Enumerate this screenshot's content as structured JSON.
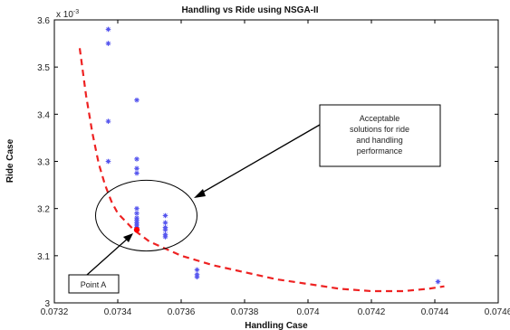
{
  "chart_data": {
    "type": "scatter",
    "title": "Handling vs Ride using NSGA-II",
    "xlabel": "Handling Case",
    "ylabel": "Ride Case",
    "y_exponent_label": "x 10",
    "y_exponent_power": "-3",
    "xlim": [
      0.0732,
      0.0746
    ],
    "ylim": [
      3.0,
      3.6
    ],
    "x_ticks": [
      0.0732,
      0.0734,
      0.0736,
      0.0738,
      0.074,
      0.0742,
      0.0744,
      0.0746
    ],
    "x_tick_labels": [
      "0.0732",
      "0.0734",
      "0.0736",
      "0.0738",
      "0.074",
      "0.0742",
      "0.0744",
      "0.0746"
    ],
    "y_ticks": [
      3.0,
      3.1,
      3.2,
      3.3,
      3.4,
      3.5,
      3.6
    ],
    "y_tick_labels": [
      "3",
      "3.1",
      "3.2",
      "3.3",
      "3.4",
      "3.5",
      "3.6"
    ],
    "grid": false,
    "series": [
      {
        "marker": "asterisk",
        "color": "#5555ee",
        "points": [
          [
            0.07337,
            3.58
          ],
          [
            0.07337,
            3.55
          ],
          [
            0.07337,
            3.385
          ],
          [
            0.07337,
            3.3
          ],
          [
            0.07346,
            3.43
          ],
          [
            0.07346,
            3.305
          ],
          [
            0.07346,
            3.285
          ],
          [
            0.07346,
            3.275
          ],
          [
            0.07346,
            3.2
          ],
          [
            0.07346,
            3.19
          ],
          [
            0.07346,
            3.18
          ],
          [
            0.07346,
            3.175
          ],
          [
            0.07346,
            3.17
          ],
          [
            0.07346,
            3.165
          ],
          [
            0.07346,
            3.16
          ],
          [
            0.07355,
            3.185
          ],
          [
            0.07355,
            3.17
          ],
          [
            0.07355,
            3.16
          ],
          [
            0.07355,
            3.155
          ],
          [
            0.07355,
            3.145
          ],
          [
            0.07355,
            3.14
          ],
          [
            0.07365,
            3.07
          ],
          [
            0.07365,
            3.06
          ],
          [
            0.07365,
            3.055
          ],
          [
            0.07441,
            3.045
          ]
        ]
      },
      {
        "marker": "dot",
        "color": "#ff0000",
        "points": [
          [
            0.07346,
            3.155
          ]
        ]
      }
    ],
    "trend_curve": {
      "style": "dashed",
      "color": "#ee2222",
      "points": [
        [
          0.07328,
          3.54
        ],
        [
          0.0733,
          3.44
        ],
        [
          0.07332,
          3.36
        ],
        [
          0.07334,
          3.295
        ],
        [
          0.07336,
          3.25
        ],
        [
          0.07338,
          3.215
        ],
        [
          0.0734,
          3.19
        ],
        [
          0.07345,
          3.155
        ],
        [
          0.0735,
          3.13
        ],
        [
          0.07355,
          3.115
        ],
        [
          0.0736,
          3.1
        ],
        [
          0.0737,
          3.08
        ],
        [
          0.0738,
          3.065
        ],
        [
          0.0739,
          3.05
        ],
        [
          0.074,
          3.04
        ],
        [
          0.0741,
          3.03
        ],
        [
          0.0742,
          3.025
        ],
        [
          0.0743,
          3.025
        ],
        [
          0.07438,
          3.03
        ],
        [
          0.07443,
          3.035
        ]
      ]
    },
    "annotations": [
      {
        "id": "acceptable",
        "text_lines": [
          "Acceptable",
          "solutions for ride",
          "and handling",
          "performance"
        ],
        "arrow_to": [
          0.07349,
          3.185
        ]
      },
      {
        "id": "point-a",
        "text_lines": [
          "Point A"
        ],
        "arrow_to": [
          0.07346,
          3.155
        ]
      }
    ],
    "ellipse": {
      "center": [
        0.07349,
        3.185
      ],
      "radius_x": 0.00016,
      "radius_y": 0.075
    }
  }
}
